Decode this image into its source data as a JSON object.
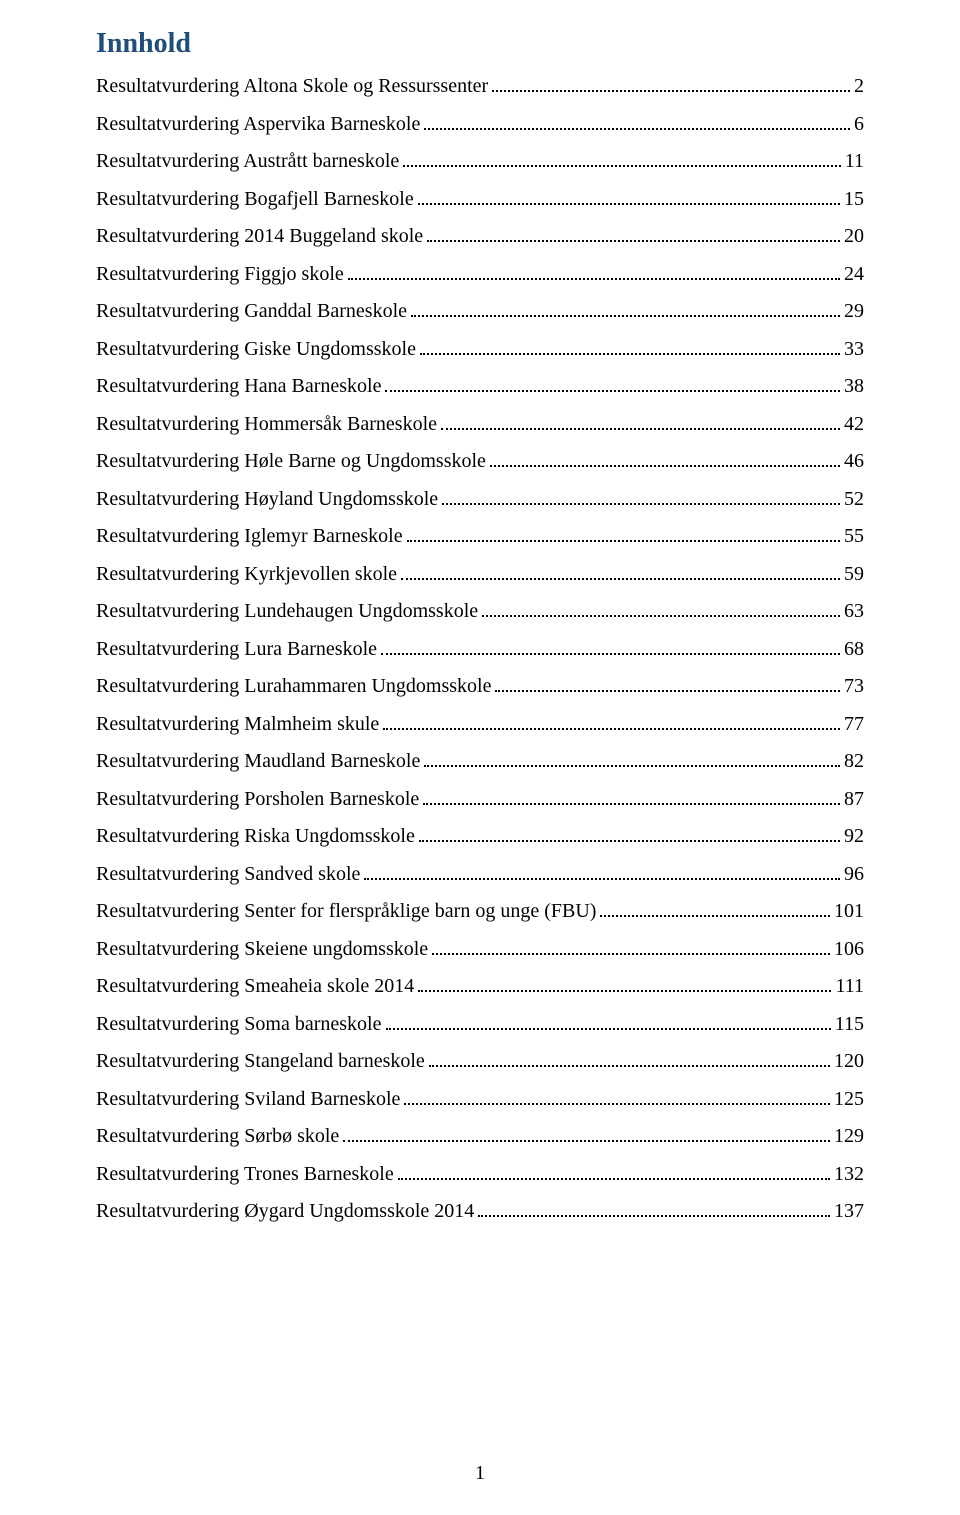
{
  "document": {
    "title": "Innhold",
    "title_color": "#1f4e79",
    "title_fontsize": 28,
    "body_fontsize": 20,
    "font_family": "Times New Roman",
    "background_color": "#ffffff",
    "text_color": "#000000",
    "page_number": "1",
    "toc": [
      {
        "label": "Resultatvurdering Altona Skole og Ressurssenter",
        "page": "2"
      },
      {
        "label": "Resultatvurdering Aspervika Barneskole",
        "page": "6"
      },
      {
        "label": "Resultatvurdering Austrått barneskole",
        "page": "11"
      },
      {
        "label": "Resultatvurdering Bogafjell Barneskole",
        "page": "15"
      },
      {
        "label": "Resultatvurdering 2014 Buggeland skole",
        "page": "20"
      },
      {
        "label": "Resultatvurdering Figgjo skole",
        "page": "24"
      },
      {
        "label": "Resultatvurdering Ganddal Barneskole",
        "page": "29"
      },
      {
        "label": "Resultatvurdering Giske Ungdomsskole",
        "page": "33"
      },
      {
        "label": "Resultatvurdering Hana Barneskole",
        "page": "38"
      },
      {
        "label": "Resultatvurdering Hommersåk Barneskole",
        "page": "42"
      },
      {
        "label": "Resultatvurdering Høle Barne og Ungdomsskole",
        "page": "46"
      },
      {
        "label": "Resultatvurdering Høyland  Ungdomsskole",
        "page": "52"
      },
      {
        "label": "Resultatvurdering Iglemyr Barneskole",
        "page": "55"
      },
      {
        "label": "Resultatvurdering Kyrkjevollen skole",
        "page": "59"
      },
      {
        "label": "Resultatvurdering Lundehaugen Ungdomsskole",
        "page": "63"
      },
      {
        "label": "Resultatvurdering Lura Barneskole",
        "page": "68"
      },
      {
        "label": "Resultatvurdering Lurahammaren Ungdomsskole",
        "page": "73"
      },
      {
        "label": "Resultatvurdering Malmheim skule",
        "page": "77"
      },
      {
        "label": "Resultatvurdering Maudland Barneskole",
        "page": "82"
      },
      {
        "label": "Resultatvurdering Porsholen Barneskole",
        "page": "87"
      },
      {
        "label": "Resultatvurdering Riska Ungdomsskole",
        "page": "92"
      },
      {
        "label": "Resultatvurdering Sandved skole",
        "page": "96"
      },
      {
        "label": "Resultatvurdering Senter for flerspråklige barn og unge (FBU)",
        "page": "101"
      },
      {
        "label": "Resultatvurdering Skeiene ungdomsskole",
        "page": "106"
      },
      {
        "label": "Resultatvurdering Smeaheia skole 2014",
        "page": "111"
      },
      {
        "label": "Resultatvurdering Soma barneskole",
        "page": "115"
      },
      {
        "label": "Resultatvurdering Stangeland barneskole",
        "page": "120"
      },
      {
        "label": "Resultatvurdering Sviland Barneskole",
        "page": "125"
      },
      {
        "label": "Resultatvurdering Sørbø skole",
        "page": "129"
      },
      {
        "label": "Resultatvurdering Trones Barneskole",
        "page": "132"
      },
      {
        "label": "Resultatvurdering Øygard Ungdomsskole 2014",
        "page": "137"
      }
    ]
  }
}
